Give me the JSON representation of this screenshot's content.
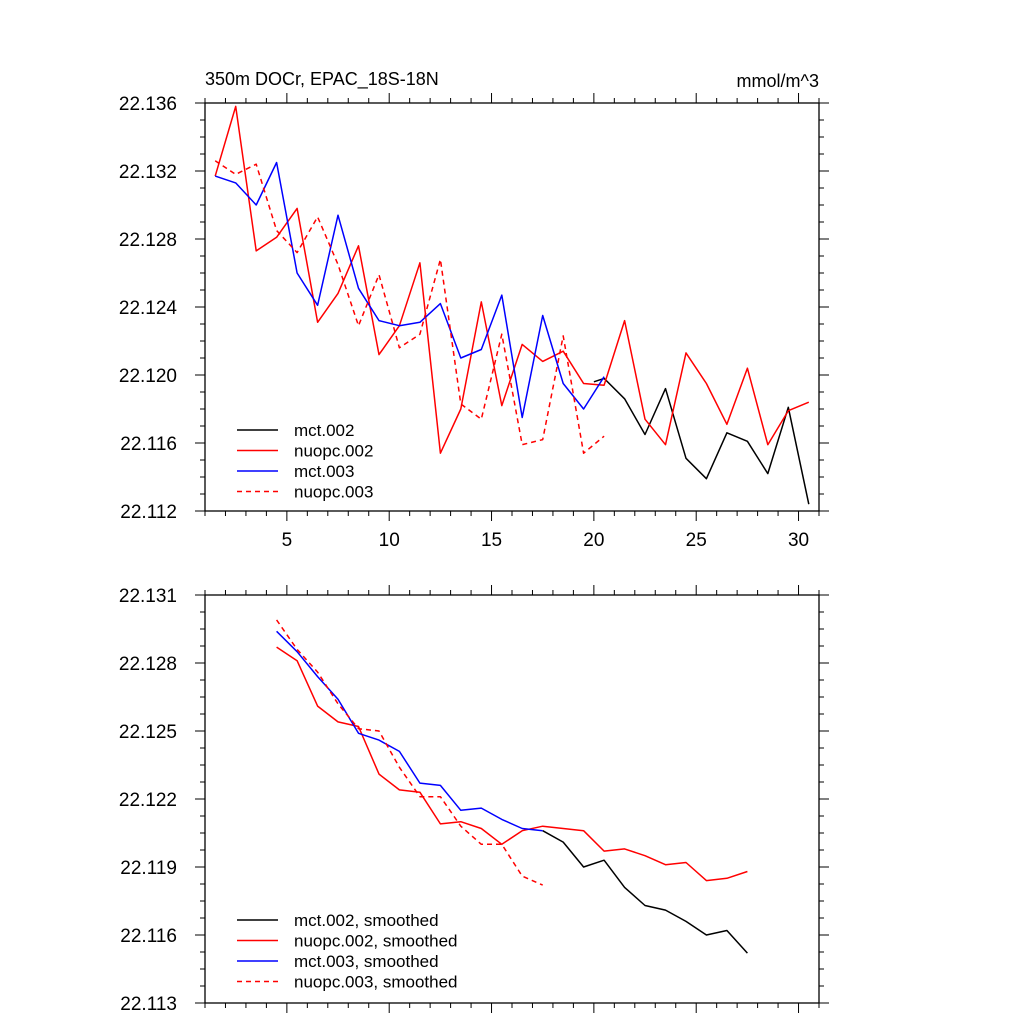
{
  "chart_data": [
    {
      "type": "line",
      "title": "350m DOCr, EPAC_18S-18N",
      "units": "mmol/m^3",
      "xlim": [
        1,
        31
      ],
      "ylim": [
        22.112,
        22.136
      ],
      "x_ticks": [
        5,
        10,
        15,
        20,
        25,
        30
      ],
      "x_tick_labels": [
        "5",
        "10",
        "15",
        "20",
        "25",
        "30"
      ],
      "y_ticks": [
        22.112,
        22.116,
        22.12,
        22.124,
        22.128,
        22.132,
        22.136
      ],
      "y_tick_labels": [
        "22.112",
        "22.116",
        "22.120",
        "22.124",
        "22.128",
        "22.132",
        "22.136"
      ],
      "legend_position": "bottom-left",
      "series": [
        {
          "name": "mct.002",
          "color": "#000000",
          "dash": "solid",
          "x": [
            20,
            20.5,
            21.5,
            22.5,
            23.5,
            24.5,
            25.5,
            26.5,
            27.5,
            28.5,
            29.5,
            30.5
          ],
          "y": [
            22.1196,
            22.1198,
            22.1186,
            22.1165,
            22.1192,
            22.1151,
            22.1139,
            22.1166,
            22.1161,
            22.1142,
            22.1181,
            22.1124
          ]
        },
        {
          "name": "nuopc.002",
          "color": "#ff0000",
          "dash": "solid",
          "x": [
            1.5,
            2.5,
            3.5,
            4.5,
            5.5,
            6.5,
            7.5,
            8.5,
            9.5,
            10.5,
            11.5,
            12.5,
            13.5,
            14.5,
            15.5,
            16.5,
            17.5,
            18.5,
            19.5,
            20.5,
            21.5,
            22.5,
            23.5,
            24.5,
            25.5,
            26.5,
            27.5,
            28.5,
            29.5,
            30.5
          ],
          "y": [
            22.1317,
            22.1358,
            22.1273,
            22.1281,
            22.1298,
            22.1231,
            22.1248,
            22.1276,
            22.1212,
            22.1229,
            22.1266,
            22.1154,
            22.118,
            22.1243,
            22.1182,
            22.1218,
            22.1208,
            22.1214,
            22.1195,
            22.1194,
            22.1232,
            22.1174,
            22.1159,
            22.1213,
            22.1195,
            22.1171,
            22.1204,
            22.1159,
            22.1179,
            22.1184
          ]
        },
        {
          "name": "mct.003",
          "color": "#0000ff",
          "dash": "solid",
          "x": [
            1.5,
            2.5,
            3.5,
            4.5,
            5.5,
            6.5,
            7.5,
            8.5,
            9.5,
            10.5,
            11.5,
            12.5,
            13.5,
            14.5,
            15.5,
            16.5,
            17.5,
            18.5,
            19.5,
            20.5
          ],
          "y": [
            22.1317,
            22.1313,
            22.13,
            22.1325,
            22.126,
            22.1241,
            22.1294,
            22.1251,
            22.1232,
            22.1229,
            22.1231,
            22.1242,
            22.121,
            22.1215,
            22.1247,
            22.1175,
            22.1235,
            22.1195,
            22.118,
            22.1199
          ]
        },
        {
          "name": "nuopc.003",
          "color": "#ff0000",
          "dash": "dashed",
          "x": [
            1.5,
            2.5,
            3.5,
            4.5,
            5.5,
            6.5,
            7.5,
            8.5,
            9.5,
            10.5,
            11.5,
            12.5,
            13.5,
            14.5,
            15.5,
            16.5,
            17.5,
            18.5,
            19.5,
            20.5
          ],
          "y": [
            22.1326,
            22.1318,
            22.1324,
            22.1285,
            22.1272,
            22.1293,
            22.1265,
            22.1229,
            22.1259,
            22.1216,
            22.1224,
            22.1268,
            22.1183,
            22.1174,
            22.1224,
            22.1159,
            22.1162,
            22.1223,
            22.1154,
            22.1164
          ]
        }
      ]
    },
    {
      "type": "line",
      "title": "",
      "xlim": [
        1,
        31
      ],
      "ylim": [
        22.113,
        22.131
      ],
      "y_ticks": [
        22.113,
        22.116,
        22.119,
        22.122,
        22.125,
        22.128,
        22.131
      ],
      "y_tick_labels": [
        "22.113",
        "22.116",
        "22.119",
        "22.122",
        "22.125",
        "22.128",
        "22.131"
      ],
      "legend_position": "bottom-left",
      "series": [
        {
          "name": "mct.002, smoothed",
          "color": "#000000",
          "dash": "solid",
          "x": [
            17.5,
            18.5,
            19.5,
            20.5,
            21.5,
            22.5,
            23.5,
            24.5,
            25.5,
            26.5,
            27.5
          ],
          "y": [
            22.1206,
            22.1201,
            22.119,
            22.1193,
            22.1181,
            22.1173,
            22.1171,
            22.1166,
            22.116,
            22.1162,
            22.1152
          ]
        },
        {
          "name": "nuopc.002, smoothed",
          "color": "#ff0000",
          "dash": "solid",
          "x": [
            4.5,
            5.5,
            6.5,
            7.5,
            8.5,
            9.5,
            10.5,
            11.5,
            12.5,
            13.5,
            14.5,
            15.5,
            16.5,
            17.5,
            18.5,
            19.5,
            20.5,
            21.5,
            22.5,
            23.5,
            24.5,
            25.5,
            26.5,
            27.5
          ],
          "y": [
            22.1287,
            22.1281,
            22.1261,
            22.1254,
            22.1252,
            22.1231,
            22.1224,
            22.1223,
            22.1209,
            22.121,
            22.1207,
            22.12,
            22.1206,
            22.1208,
            22.1207,
            22.1206,
            22.1197,
            22.1198,
            22.1195,
            22.1191,
            22.1192,
            22.1184,
            22.1185,
            22.1188
          ]
        },
        {
          "name": "mct.003, smoothed",
          "color": "#0000ff",
          "dash": "solid",
          "x": [
            4.5,
            5.5,
            6.5,
            7.5,
            8.5,
            9.5,
            10.5,
            11.5,
            12.5,
            13.5,
            14.5,
            15.5,
            16.5,
            17.5
          ],
          "y": [
            22.1294,
            22.1285,
            22.1274,
            22.1264,
            22.1249,
            22.1246,
            22.1241,
            22.1227,
            22.1226,
            22.1215,
            22.1216,
            22.1211,
            22.1207,
            22.1206
          ]
        },
        {
          "name": "nuopc.003, smoothed",
          "color": "#ff0000",
          "dash": "dashed",
          "x": [
            4.5,
            5.5,
            6.5,
            7.5,
            8.5,
            9.5,
            10.5,
            11.5,
            12.5,
            13.5,
            14.5,
            15.5,
            16.5,
            17.5
          ],
          "y": [
            22.1299,
            22.1286,
            22.1276,
            22.1262,
            22.1251,
            22.125,
            22.1234,
            22.1221,
            22.1221,
            22.1208,
            22.12,
            22.12,
            22.1186,
            22.1182
          ]
        }
      ]
    }
  ]
}
